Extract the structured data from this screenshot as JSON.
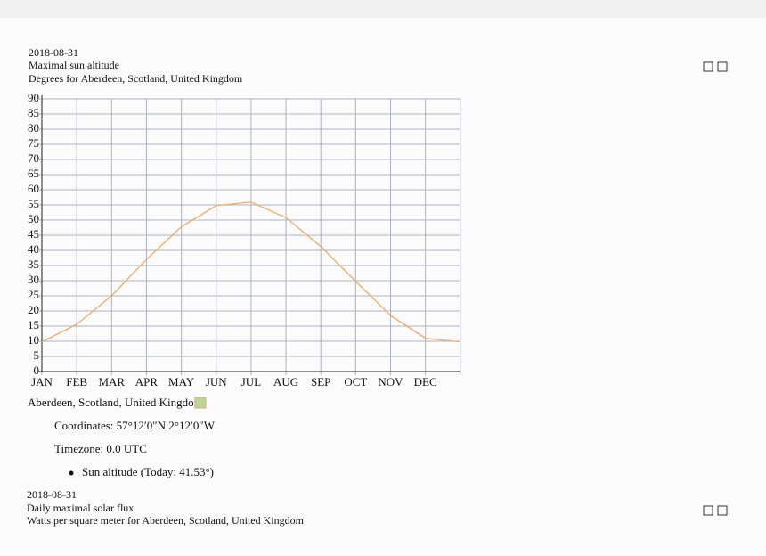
{
  "chart_data": {
    "type": "line",
    "date": "2018-08-31",
    "title": "Maximal sun altitude",
    "subtitle": "Degrees for Aberdeen, Scotland, United Kingdom",
    "categories": [
      "JAN",
      "FEB",
      "MAR",
      "APR",
      "MAY",
      "JUN",
      "JUL",
      "AUG",
      "SEP",
      "OCT",
      "NOV",
      "DEC",
      null
    ],
    "series": [
      {
        "name": "Sun altitude",
        "color": "#f2a868",
        "values": [
          9.8,
          15.6,
          25,
          37,
          47.8,
          54.8,
          55.9,
          50.8,
          41.3,
          29.8,
          18.5,
          11,
          9.8
        ]
      }
    ],
    "ylim": [
      0,
      90
    ],
    "yticks": [
      0,
      5,
      10,
      15,
      20,
      25,
      30,
      35,
      40,
      45,
      50,
      55,
      60,
      65,
      70,
      75,
      80,
      85,
      90
    ],
    "grid": true
  },
  "info": {
    "location": "Aberdeen, Scotland, United Kingdom",
    "coordinates": "Coordinates: 57°12′0″N 2°12′0″W",
    "timezone": "Timezone: 0.0 UTC",
    "today": "Sun altitude (Today: 41.53°)"
  },
  "next_chart": {
    "date": "2018-08-31",
    "title": "Daily maximal solar flux",
    "subtitle": "Watts per square meter for Aberdeen, Scotland, United Kingdom"
  }
}
